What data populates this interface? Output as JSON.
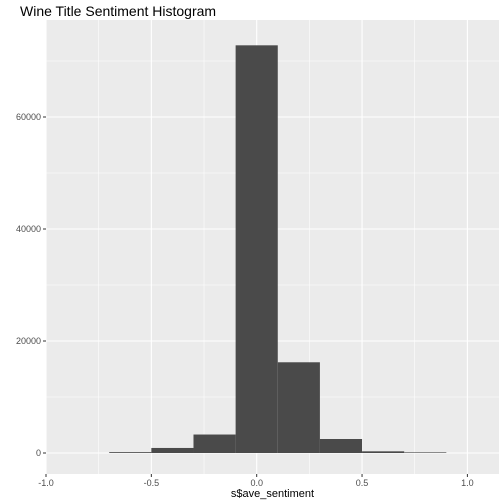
{
  "chart_data": {
    "type": "bar",
    "title": "Wine Title Sentiment Histogram",
    "xlabel": "s$ave_sentiment",
    "ylabel": "",
    "xlim": [
      -1.0,
      1.15
    ],
    "ylim": [
      0,
      75000
    ],
    "x_ticks": [
      -1.0,
      -0.5,
      0.0,
      0.5,
      1.0
    ],
    "x_tick_labels": [
      "-1.0",
      "-0.5",
      "0.0",
      "0.5",
      "1.0"
    ],
    "y_ticks": [
      0,
      20000,
      40000,
      60000
    ],
    "y_tick_labels": [
      "0",
      "20000",
      "40000",
      "60000"
    ],
    "bins": [
      {
        "x0": -0.7,
        "x1": -0.5,
        "count": 150
      },
      {
        "x0": -0.5,
        "x1": -0.3,
        "count": 900
      },
      {
        "x0": -0.3,
        "x1": -0.1,
        "count": 3300
      },
      {
        "x0": -0.1,
        "x1": 0.1,
        "count": 72800
      },
      {
        "x0": 0.1,
        "x1": 0.3,
        "count": 16200
      },
      {
        "x0": 0.3,
        "x1": 0.5,
        "count": 2500
      },
      {
        "x0": 0.5,
        "x1": 0.7,
        "count": 300
      },
      {
        "x0": 0.7,
        "x1": 0.9,
        "count": 50
      }
    ],
    "bar_color": "#4a4a4a",
    "panel_background": "#ebebeb",
    "grid": true,
    "grid_color": "#ffffff",
    "legend": "none"
  }
}
